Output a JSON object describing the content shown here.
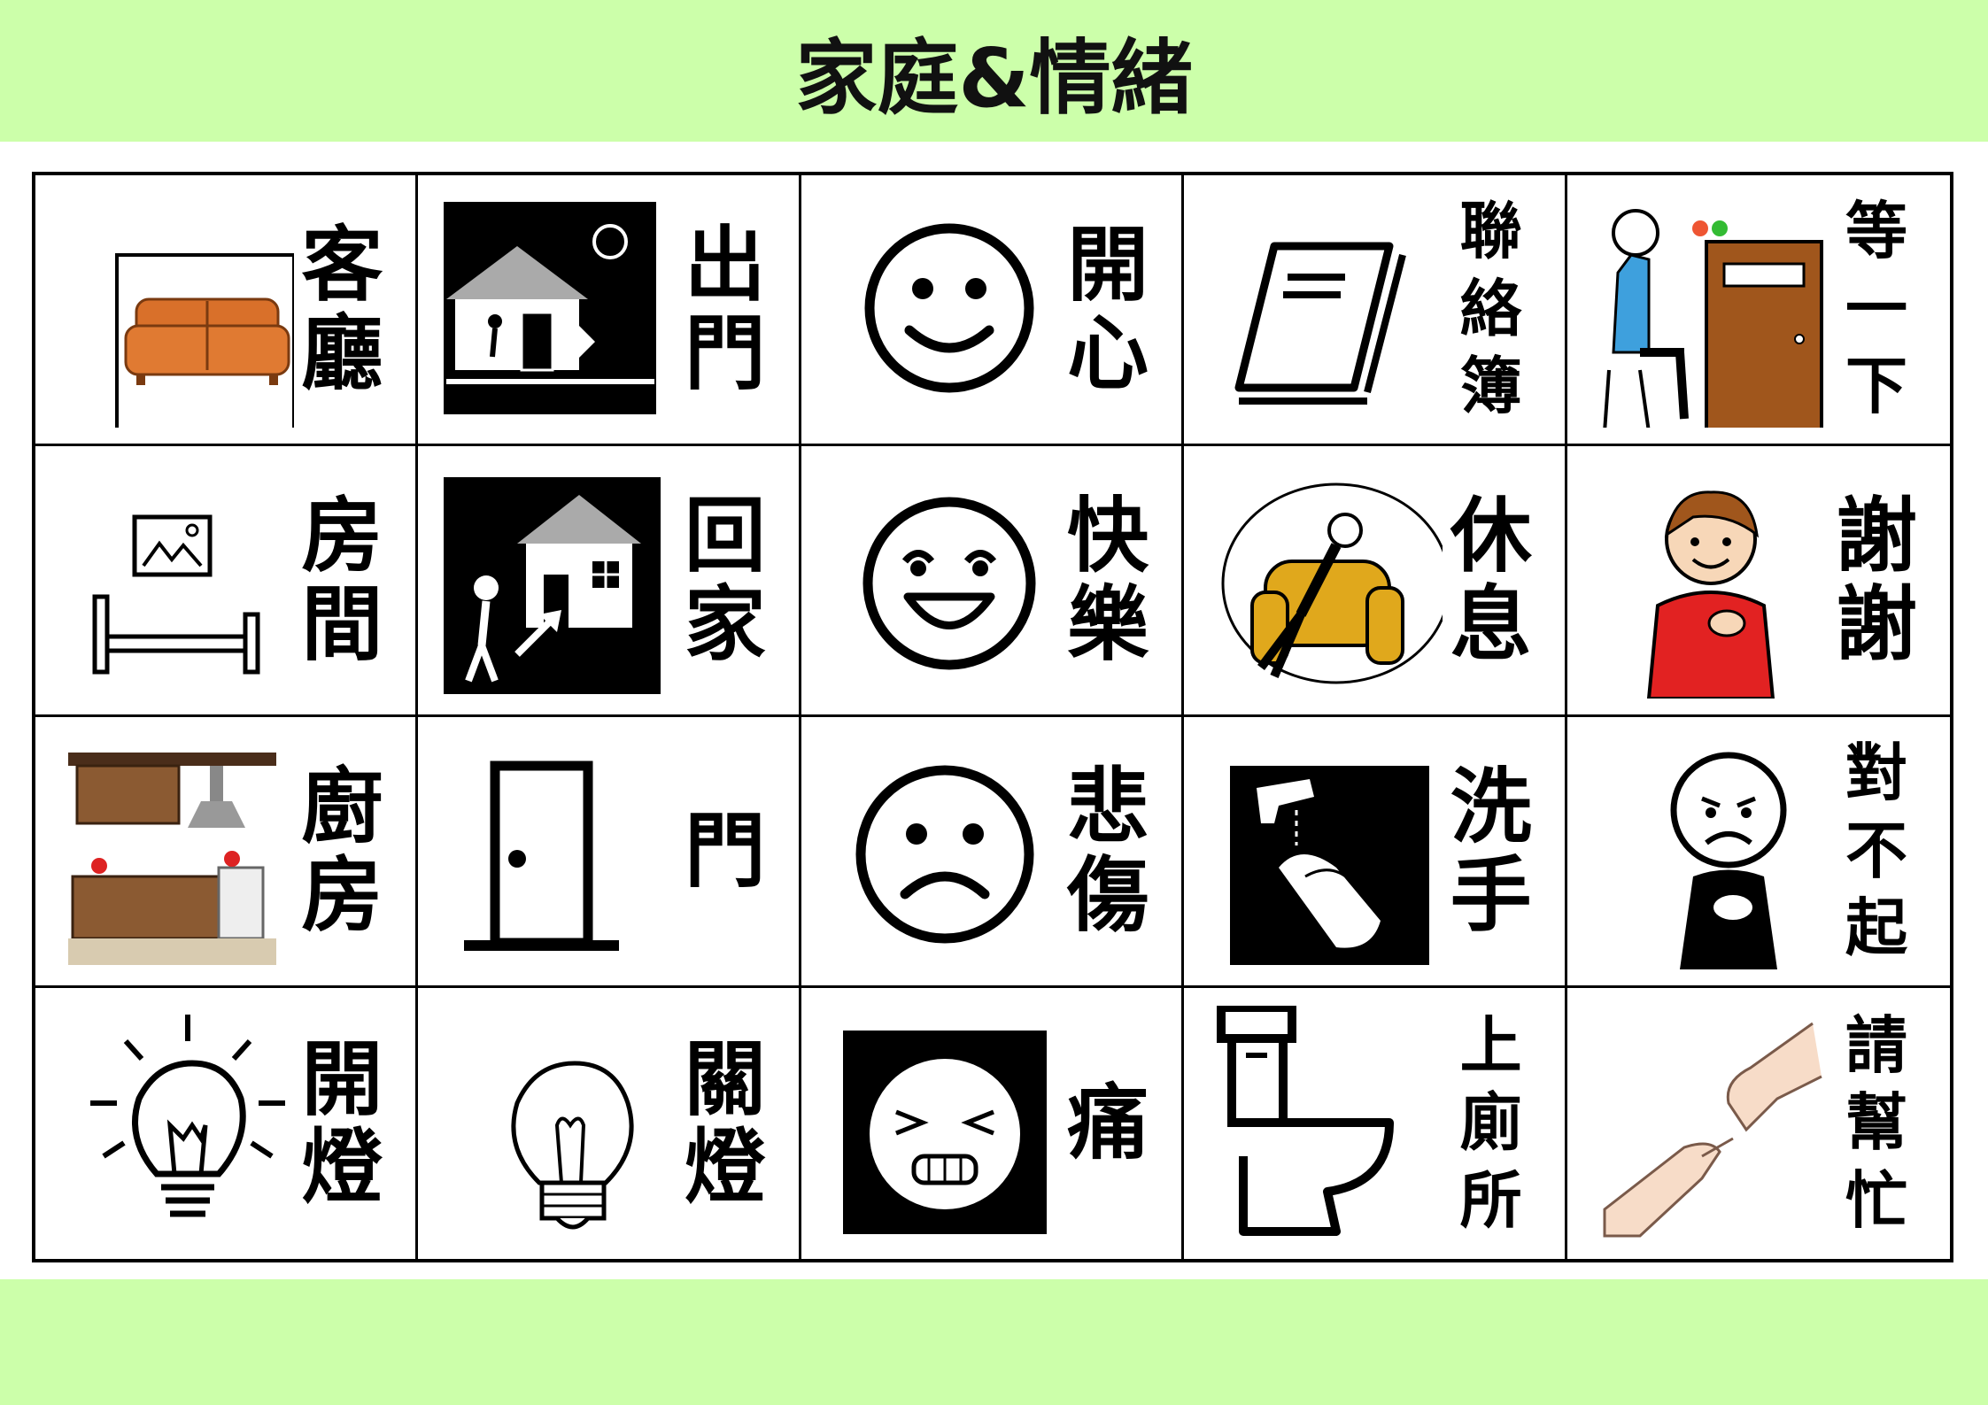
{
  "header": {
    "title": "家庭&情緒"
  },
  "colors": {
    "band": "#ccffaa",
    "sofa": "#d9702a",
    "door": "#a0561c",
    "chair": "#e0a81c",
    "shirt": "#e22222",
    "seat": "#3ea0dd"
  },
  "cards": [
    {
      "id": "living-room",
      "icon": "sofa-icon",
      "chars": [
        "客",
        "廳"
      ]
    },
    {
      "id": "go-out",
      "icon": "go-out-icon",
      "chars": [
        "出",
        "門"
      ]
    },
    {
      "id": "happy",
      "icon": "smile-face-icon",
      "chars": [
        "開",
        "心"
      ]
    },
    {
      "id": "contact-book",
      "icon": "book-icon",
      "chars": [
        "聯",
        "絡",
        "簿"
      ]
    },
    {
      "id": "wait",
      "icon": "waiting-person-icon",
      "chars": [
        "等",
        "一",
        "下"
      ]
    },
    {
      "id": "bedroom",
      "icon": "bed-icon",
      "chars": [
        "房",
        "間"
      ]
    },
    {
      "id": "go-home",
      "icon": "go-home-icon",
      "chars": [
        "回",
        "家"
      ]
    },
    {
      "id": "joyful",
      "icon": "laugh-face-icon",
      "chars": [
        "快",
        "樂"
      ]
    },
    {
      "id": "rest",
      "icon": "armchair-rest-icon",
      "chars": [
        "休",
        "息"
      ]
    },
    {
      "id": "thanks",
      "icon": "thank-you-boy-icon",
      "chars": [
        "謝",
        "謝"
      ]
    },
    {
      "id": "kitchen",
      "icon": "kitchen-icon",
      "chars": [
        "廚",
        "房"
      ]
    },
    {
      "id": "door",
      "icon": "door-icon",
      "chars": [
        "門"
      ]
    },
    {
      "id": "sad",
      "icon": "sad-face-icon",
      "chars": [
        "悲",
        "傷"
      ]
    },
    {
      "id": "wash-hands",
      "icon": "wash-hands-icon",
      "chars": [
        "洗",
        "手"
      ]
    },
    {
      "id": "sorry",
      "icon": "sorry-person-icon",
      "chars": [
        "對",
        "不",
        "起"
      ]
    },
    {
      "id": "lights-on",
      "icon": "light-on-icon",
      "chars": [
        "開",
        "燈"
      ]
    },
    {
      "id": "lights-off",
      "icon": "light-off-icon",
      "chars": [
        "關",
        "燈"
      ]
    },
    {
      "id": "pain",
      "icon": "pain-face-icon",
      "chars": [
        "痛"
      ]
    },
    {
      "id": "toilet",
      "icon": "toilet-icon",
      "chars": [
        "上",
        "廁",
        "所"
      ]
    },
    {
      "id": "help",
      "icon": "helping-hands-icon",
      "chars": [
        "請",
        "幫",
        "忙"
      ]
    }
  ]
}
